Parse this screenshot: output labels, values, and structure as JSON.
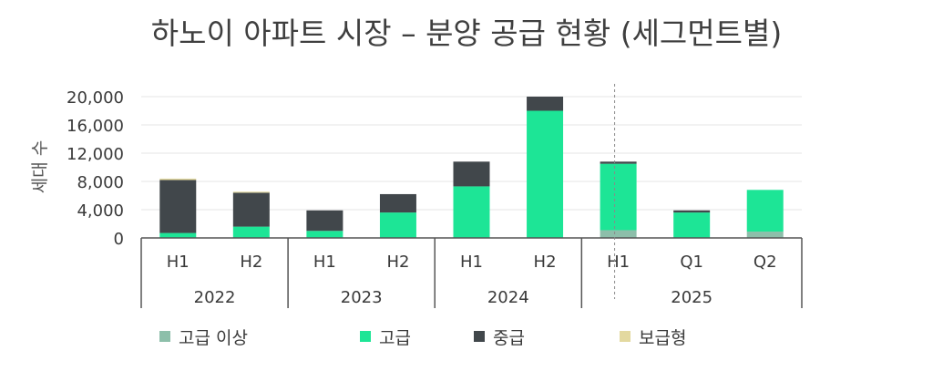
{
  "title": "하노이 아파트 시장 – 분양 공급 현황 (세그먼트별)",
  "chart_data": {
    "type": "bar",
    "stacked": true,
    "ylabel": "세대 수",
    "ylim": [
      0,
      20000
    ],
    "yticks": [
      "0",
      "4,000",
      "8,000",
      "12,000",
      "16,000",
      "20,000"
    ],
    "ytick_values": [
      0,
      4000,
      8000,
      12000,
      16000,
      20000
    ],
    "grid": true,
    "legend_position": "bottom",
    "categories": [
      "H1",
      "H2",
      "H1",
      "H2",
      "H1",
      "H2",
      "H1",
      "Q1",
      "Q2"
    ],
    "years": [
      {
        "label": "2022",
        "start": 0,
        "end": 2
      },
      {
        "label": "2023",
        "start": 2,
        "end": 4
      },
      {
        "label": "2024",
        "start": 4,
        "end": 6
      },
      {
        "label": "2025",
        "start": 6,
        "end": 9
      }
    ],
    "divider_after_index": 6,
    "series": [
      {
        "name": "고급 이상",
        "color": "#8dbfaa",
        "values": [
          0,
          0,
          0,
          0,
          0,
          0,
          1100,
          0,
          900
        ]
      },
      {
        "name": "고급",
        "color": "#1de596",
        "values": [
          700,
          1600,
          1000,
          3600,
          7300,
          18000,
          9400,
          3600,
          5900
        ]
      },
      {
        "name": "중급",
        "color": "#41474b",
        "values": [
          7500,
          4800,
          2900,
          2600,
          3500,
          2000,
          300,
          300,
          0
        ]
      },
      {
        "name": "보급형",
        "color": "#e3d9a0",
        "values": [
          200,
          150,
          0,
          0,
          0,
          0,
          0,
          0,
          0
        ]
      }
    ]
  }
}
